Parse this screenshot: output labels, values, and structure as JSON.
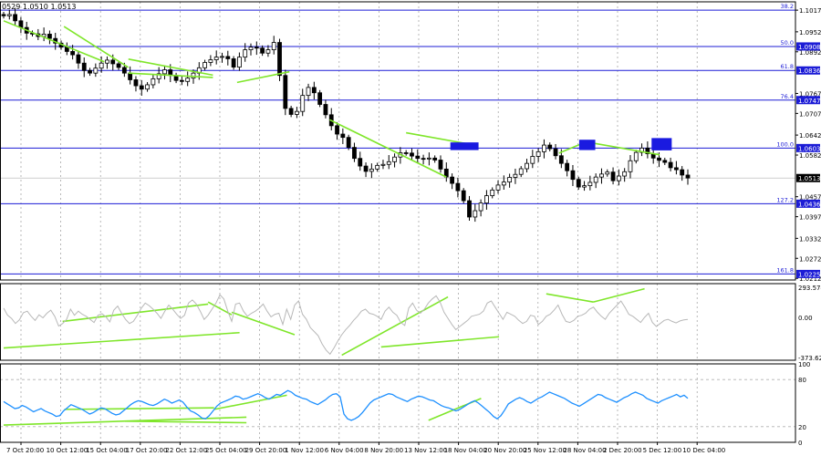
{
  "header": {
    "symbol_info": "0529 1.0510 1.0513"
  },
  "colors": {
    "background": "#ffffff",
    "candle": "#000000",
    "fib_line": "#1c1cd6",
    "fib_label_bg": "#1c1cd6",
    "trend_line": "#7fe62a",
    "cci_line": "#b8b8b8",
    "rsi_line": "#1e90ff",
    "highlight_box": "#1a1ae0",
    "grid": "#9a9a9a"
  },
  "chart_data": [
    {
      "type": "candlestick",
      "name": "price",
      "ylim": [
        1.0207,
        1.1042
      ],
      "y_ticks": [
        "1.1017",
        "1.0952",
        "1.0892",
        "1.0767",
        "1.0707",
        "1.0642",
        "1.0582",
        "1.0457",
        "1.0397",
        "1.0332",
        "1.0272",
        "1.0212"
      ],
      "fib_levels": [
        {
          "label": "38.2",
          "price": 1.1017,
          "price_label": ""
        },
        {
          "label": "50.0",
          "price": 1.0908,
          "price_label": "1.0908"
        },
        {
          "label": "61.8",
          "price": 1.0836,
          "price_label": "1.0836"
        },
        {
          "label": "76.4",
          "price": 1.0747,
          "price_label": "1.0747"
        },
        {
          "label": "100.0",
          "price": 1.0603,
          "price_label": "1.0603"
        },
        {
          "label": "127.2",
          "price": 1.0436,
          "price_label": "1.0436"
        },
        {
          "label": "161.8",
          "price": 1.0225,
          "price_label": "1.0225"
        }
      ],
      "current_price": "1.0513",
      "current_value": 1.0513,
      "close": [
        1.1,
        1.1004,
        1.0985,
        1.0965,
        1.0948,
        1.0946,
        1.0938,
        1.0945,
        1.0932,
        1.0918,
        1.0906,
        1.0893,
        1.0883,
        1.0858,
        1.0836,
        1.0828,
        1.0843,
        1.0858,
        1.0867,
        1.0856,
        1.0845,
        1.0828,
        1.0808,
        1.079,
        1.078,
        1.0793,
        1.0811,
        1.0826,
        1.0838,
        1.0821,
        1.0806,
        1.0803,
        1.0813,
        1.0828,
        1.0844,
        1.086,
        1.0868,
        1.0876,
        1.0878,
        1.0871,
        1.0846,
        1.0876,
        1.0898,
        1.0906,
        1.0903,
        1.0888,
        1.0898,
        1.092,
        1.0821,
        1.0722,
        1.0704,
        1.0713,
        1.0761,
        1.0785,
        1.0769,
        1.0734,
        1.0703,
        1.067,
        1.0645,
        1.0635,
        1.0605,
        1.0572,
        1.0549,
        1.0533,
        1.054,
        1.0551,
        1.0554,
        1.0562,
        1.0576,
        1.0589,
        1.0588,
        1.0579,
        1.0572,
        1.0571,
        1.0573,
        1.0567,
        1.054,
        1.0516,
        1.0497,
        1.0475,
        1.0445,
        1.0396,
        1.0415,
        1.0438,
        1.046,
        1.0477,
        1.0492,
        1.0501,
        1.0515,
        1.0524,
        1.0541,
        1.0557,
        1.0578,
        1.0592,
        1.0612,
        1.0601,
        1.058,
        1.0557,
        1.0535,
        1.0509,
        1.0486,
        1.049,
        1.05,
        1.0516,
        1.0525,
        1.0531,
        1.0505,
        1.0519,
        1.0532,
        1.0565,
        1.059,
        1.0603,
        1.0586,
        1.0573,
        1.0566,
        1.056,
        1.0544,
        1.0538,
        1.0522,
        1.0513
      ],
      "x_labels": [
        "7 Oct 20:00",
        "10 Oct 12:00",
        "15 Oct 04:00",
        "17 Oct 20:00",
        "22 Oct 12:00",
        "25 Oct 04:00",
        "29 Oct 20:00",
        "1 Nov 12:00",
        "6 Nov 04:00",
        "8 Nov 20:00",
        "13 Nov 12:00",
        "18 Nov 04:00",
        "20 Nov 20:00",
        "25 Nov 12:00",
        "28 Nov 04:00",
        "2 Dec 20:00",
        "5 Dec 12:00",
        "10 Dec 04:00"
      ],
      "annotations": [
        {
          "type": "trendline",
          "x1": 0,
          "y1": 1.0985,
          "x2": 25,
          "y2": 1.0862
        },
        {
          "type": "trendline",
          "x1": 15,
          "y1": 1.0968,
          "x2": 31,
          "y2": 1.0845
        },
        {
          "type": "trendline",
          "x1": 31,
          "y1": 1.0828,
          "x2": 52,
          "y2": 1.0815
        },
        {
          "type": "trendline",
          "x1": 31,
          "y1": 1.087,
          "x2": 52,
          "y2": 1.0822
        },
        {
          "type": "trendline",
          "x1": 58,
          "y1": 1.08,
          "x2": 71,
          "y2": 1.0832
        },
        {
          "type": "trendline",
          "x1": 81,
          "y1": 1.0688,
          "x2": 110,
          "y2": 1.0516
        },
        {
          "type": "trendline",
          "x1": 100,
          "y1": 1.0649,
          "x2": 117,
          "y2": 1.0612
        },
        {
          "type": "trendline",
          "x1": 138,
          "y1": 1.0588,
          "x2": 145,
          "y2": 1.0623
        },
        {
          "type": "trendline",
          "x1": 145,
          "y1": 1.0621,
          "x2": 163,
          "y2": 1.0583
        },
        {
          "type": "box",
          "x1": 111,
          "y1": 1.062,
          "x2": 118,
          "y2": 1.0597
        },
        {
          "type": "box",
          "x1": 143,
          "y1": 1.0628,
          "x2": 147,
          "y2": 1.0597
        },
        {
          "type": "box",
          "x1": 161,
          "y1": 1.0633,
          "x2": 166,
          "y2": 1.0596
        }
      ]
    },
    {
      "type": "line",
      "name": "oscillator",
      "ylim": [
        -420,
        330
      ],
      "y_ticks": [
        "293.5749",
        "0.00",
        "-373.6290"
      ],
      "values": [
        90,
        20,
        -10,
        -60,
        -25,
        45,
        60,
        10,
        -30,
        25,
        -5,
        40,
        70,
        10,
        -85,
        -60,
        -20,
        80,
        20,
        60,
        30,
        10,
        -20,
        -50,
        20,
        35,
        5,
        -45,
        70,
        110,
        40,
        -20,
        -60,
        -40,
        20,
        90,
        140,
        115,
        80,
        40,
        -10,
        60,
        120,
        80,
        30,
        -10,
        20,
        140,
        170,
        130,
        60,
        -20,
        20,
        80,
        140,
        220,
        180,
        60,
        -40,
        130,
        140,
        60,
        10,
        40,
        60,
        90,
        130,
        60,
        5,
        30,
        40,
        -70,
        80,
        -20,
        120,
        160,
        30,
        -20,
        -100,
        -140,
        -180,
        -260,
        -320,
        -360,
        -300,
        -230,
        -170,
        -120,
        -80,
        -30,
        10,
        60,
        80,
        40,
        30,
        10,
        -20,
        60,
        100,
        50,
        20,
        -50,
        -80,
        90,
        140,
        70,
        40,
        80,
        140,
        180,
        210,
        150,
        50,
        -10,
        -70,
        -120,
        -90,
        -60,
        -30,
        10,
        20,
        30,
        60,
        140,
        160,
        100,
        40,
        -20,
        50,
        30,
        10,
        -30,
        -60,
        -40,
        20,
        10,
        -70,
        -40,
        10,
        30,
        70,
        120,
        30,
        -40,
        -50,
        -30,
        10,
        20,
        40,
        80,
        100,
        50,
        10,
        -20,
        40,
        80,
        120,
        160,
        100,
        30,
        10,
        -20,
        -50,
        0,
        40,
        -50,
        -90,
        -60,
        -30,
        -20,
        -40,
        -55,
        -35,
        -25,
        -20
      ]
    },
    {
      "type": "line",
      "name": "rsi",
      "ylim": [
        0,
        100
      ],
      "y_ticks": [
        "100",
        "80",
        "20",
        "0"
      ],
      "levels": [
        80,
        20
      ],
      "values": [
        52,
        49,
        46,
        43,
        44,
        47,
        45,
        42,
        39,
        41,
        43,
        40,
        38,
        36,
        33,
        34,
        40,
        44,
        48,
        46,
        44,
        42,
        39,
        36,
        38,
        41,
        44,
        43,
        40,
        37,
        35,
        36,
        40,
        44,
        48,
        51,
        53,
        52,
        50,
        48,
        47,
        49,
        52,
        55,
        53,
        50,
        52,
        54,
        51,
        45,
        40,
        38,
        35,
        31,
        30,
        34,
        40,
        46,
        50,
        52,
        54,
        56,
        59,
        58,
        55,
        56,
        58,
        60,
        62,
        60,
        57,
        55,
        58,
        61,
        60,
        63,
        66,
        64,
        60,
        58,
        56,
        55,
        52,
        50,
        48,
        51,
        54,
        58,
        61,
        62,
        58,
        36,
        30,
        28,
        30,
        33,
        38,
        44,
        50,
        54,
        56,
        58,
        60,
        62,
        61,
        58,
        56,
        54,
        52,
        55,
        57,
        59,
        58,
        56,
        54,
        53,
        50,
        47,
        45,
        44,
        42,
        40,
        42,
        45,
        48,
        51,
        53,
        50,
        46,
        42,
        38,
        33,
        30,
        34,
        41,
        49,
        52,
        55,
        57,
        55,
        52,
        50,
        53,
        56,
        58,
        61,
        64,
        62,
        60,
        58,
        56,
        53,
        50,
        48,
        46,
        49,
        52,
        55,
        58,
        61,
        60,
        57,
        55,
        53,
        51,
        54,
        57,
        59,
        62,
        64,
        62,
        60,
        56,
        54,
        52,
        50,
        53,
        55,
        57,
        59,
        61,
        58,
        60,
        56
      ]
    }
  ]
}
